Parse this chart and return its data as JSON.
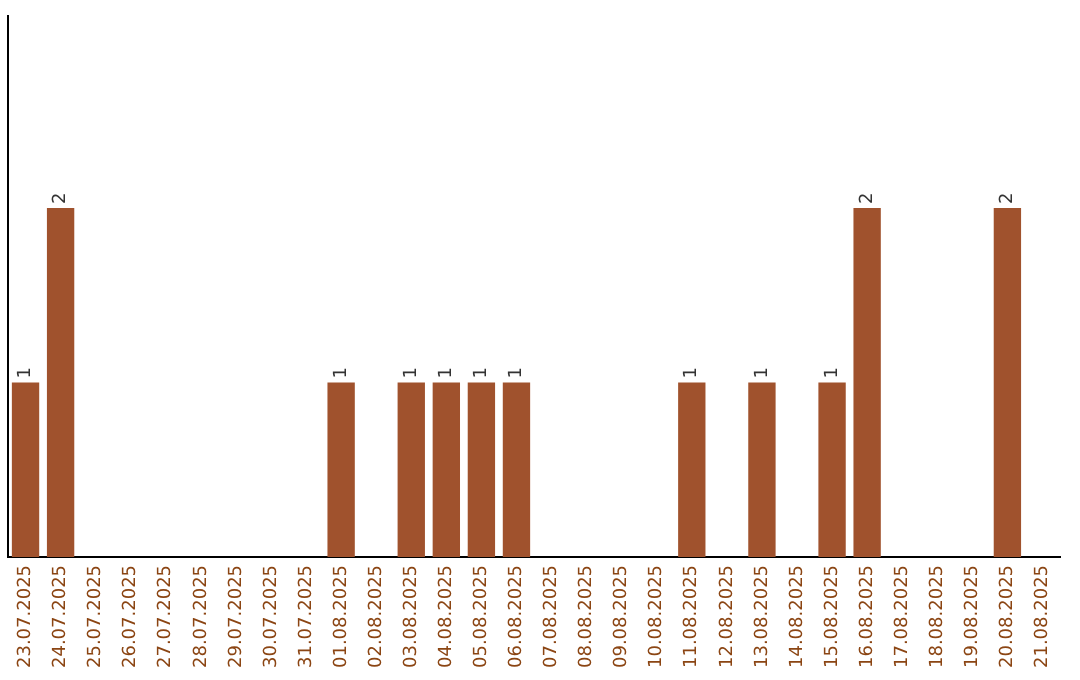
{
  "chart_data": {
    "type": "bar",
    "categories": [
      "23.07.2025",
      "24.07.2025",
      "25.07.2025",
      "26.07.2025",
      "27.07.2025",
      "28.07.2025",
      "29.07.2025",
      "30.07.2025",
      "31.07.2025",
      "01.08.2025",
      "02.08.2025",
      "03.08.2025",
      "04.08.2025",
      "05.08.2025",
      "06.08.2025",
      "07.08.2025",
      "08.08.2025",
      "09.08.2025",
      "10.08.2025",
      "11.08.2025",
      "12.08.2025",
      "13.08.2025",
      "14.08.2025",
      "15.08.2025",
      "16.08.2025",
      "17.08.2025",
      "18.08.2025",
      "19.08.2025",
      "20.08.2025",
      "21.08.2025"
    ],
    "values": [
      1,
      2,
      0,
      0,
      0,
      0,
      0,
      0,
      0,
      1,
      0,
      1,
      1,
      1,
      1,
      0,
      0,
      0,
      0,
      1,
      0,
      1,
      0,
      1,
      2,
      0,
      0,
      0,
      2,
      0
    ],
    "value_labels": [
      "1",
      "2",
      null,
      null,
      null,
      null,
      null,
      null,
      null,
      "1",
      null,
      "1",
      "1",
      "1",
      "1",
      null,
      null,
      null,
      null,
      "1",
      null,
      "1",
      null,
      "1",
      "2",
      null,
      null,
      null,
      "2",
      null
    ],
    "color": "#a0522d",
    "ylim": [
      0,
      3.1
    ],
    "tick_labels": "x",
    "grid": false
  }
}
